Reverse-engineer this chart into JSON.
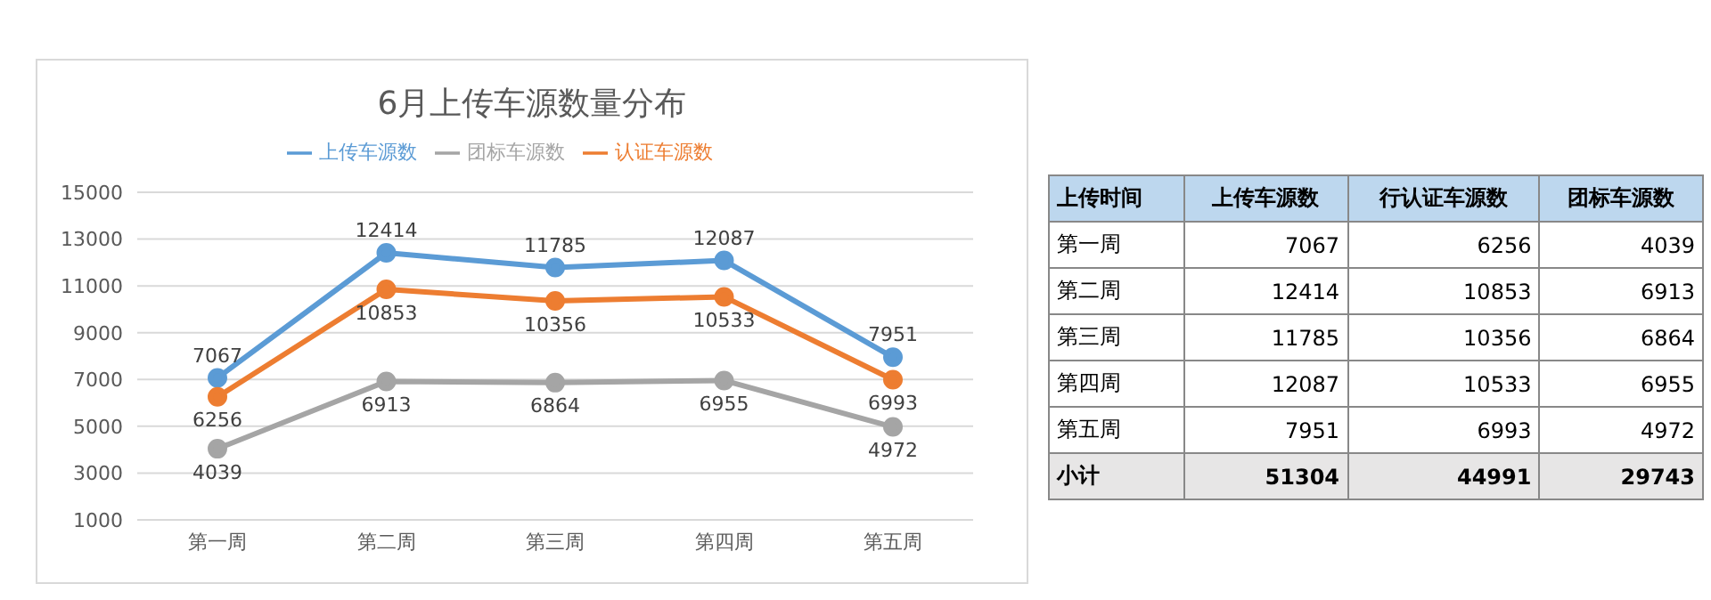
{
  "chart_data": [
    {
      "type": "line",
      "title": "6月上传车源数量分布",
      "categories": [
        "第一周",
        "第二周",
        "第三周",
        "第四周",
        "第五周"
      ],
      "series": [
        {
          "name": "上传车源数",
          "color": "#5b9bd5",
          "values": [
            7067,
            12414,
            11785,
            12087,
            7951
          ]
        },
        {
          "name": "认证车源数",
          "color": "#ed7d31",
          "values": [
            6256,
            10853,
            10356,
            10533,
            6993
          ]
        },
        {
          "name": "团标车源数",
          "color": "#a5a5a5",
          "values": [
            4039,
            6913,
            6864,
            6955,
            4972
          ]
        }
      ],
      "ylim": [
        1000,
        15000
      ],
      "yticks": [
        1000,
        3000,
        5000,
        7000,
        9000,
        11000,
        13000,
        15000
      ],
      "grid": "y",
      "legend": "top",
      "marker": "circle",
      "data_labels": true
    },
    {
      "type": "other",
      "legend_title": "上传时间",
      "categories": [
        "第一周",
        "第二周",
        "第三周",
        "第四周",
        "第五周"
      ],
      "series": [
        {
          "name": "上传车源数",
          "values": [
            7067,
            12414,
            11785,
            12087,
            7951
          ]
        },
        {
          "name": "行认证车源数",
          "values": [
            6256,
            10853,
            10356,
            10533,
            6993
          ]
        },
        {
          "name": "团标车源数",
          "values": [
            4039,
            6913,
            6864,
            6955,
            4972
          ]
        }
      ],
      "annotations": [
        "小计"
      ],
      "totals": [
        "51304",
        "44991",
        "29743"
      ],
      "data_labels": true
    }
  ]
}
